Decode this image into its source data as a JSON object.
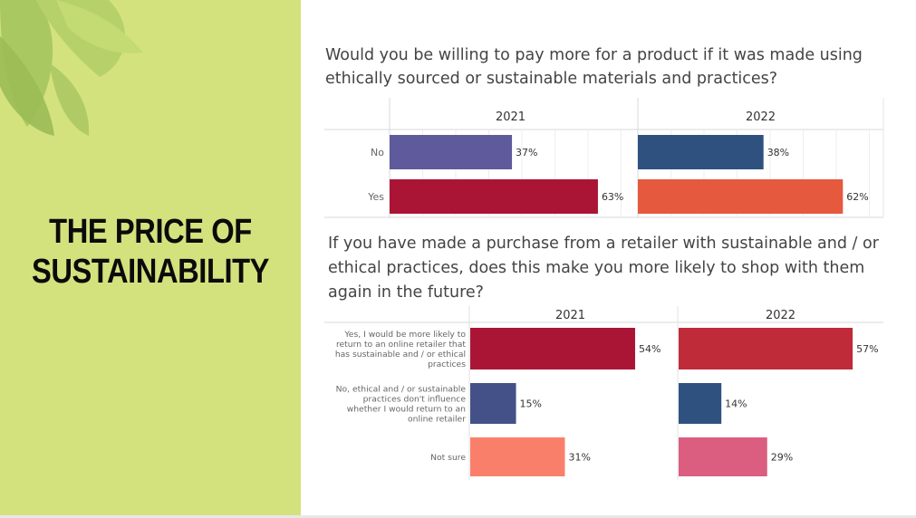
{
  "slide": {
    "title_lines": [
      "THE PRICE OF",
      "SUSTAINABILITY"
    ],
    "accent_color": "#d3e27d"
  },
  "chart_data": [
    {
      "type": "bar",
      "orientation": "horizontal",
      "title_lines": [
        "Would you be willing to pay more for a product if it was made using",
        "ethically sourced or sustainable materials and practices?"
      ],
      "categories": [
        "No",
        "Yes"
      ],
      "panels": [
        {
          "year": "2021",
          "values": [
            37,
            63
          ],
          "labels": [
            "37%",
            "63%"
          ],
          "colors": [
            "#5e5a9b",
            "#ab1535"
          ]
        },
        {
          "year": "2022",
          "values": [
            38,
            62
          ],
          "labels": [
            "38%",
            "62%"
          ],
          "colors": [
            "#2e5180",
            "#e5593e"
          ]
        }
      ],
      "xlim": [
        0,
        100
      ],
      "grid": true
    },
    {
      "type": "bar",
      "orientation": "horizontal",
      "title_lines": [
        "If you have made a purchase from a retailer with sustainable and / or",
        "ethical practices, does this make you more likely to shop with them",
        "again in the future?"
      ],
      "categories": [
        {
          "lines": [
            "Yes, I would be more likely to",
            "return to an online retailer that",
            "has sustainable and / or ethical",
            "practices"
          ]
        },
        {
          "lines": [
            "No, ethical and / or sustainable",
            "practices don't influence",
            "whether I would return to an",
            "online retailer"
          ]
        },
        {
          "lines": [
            "Not sure"
          ]
        }
      ],
      "panels": [
        {
          "year": "2021",
          "values": [
            54,
            15,
            31
          ],
          "labels": [
            "54%",
            "15%",
            "31%"
          ],
          "colors": [
            "#ab1535",
            "#435188",
            "#fa7f6b"
          ]
        },
        {
          "year": "2022",
          "values": [
            57,
            14,
            29
          ],
          "labels": [
            "57%",
            "14%",
            "29%"
          ],
          "colors": [
            "#bf2b39",
            "#2e5180",
            "#db5d80"
          ]
        }
      ],
      "xlim": [
        0,
        100
      ],
      "grid": false
    }
  ]
}
